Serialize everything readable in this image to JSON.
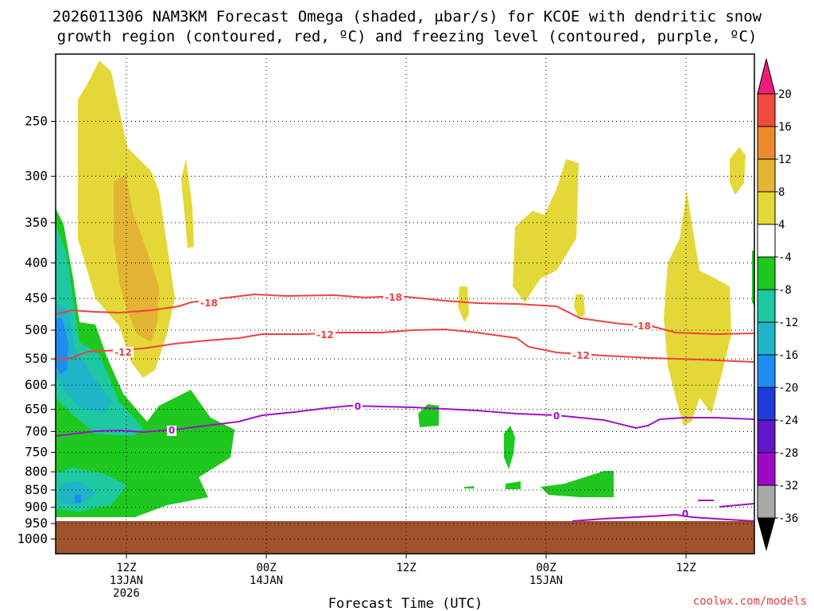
{
  "chart_data": {
    "type": "contour",
    "title": "2026011306 NAM3KM Forecast Omega (shaded, μbar/s) for KCOE with dendritic snow growth region (contoured, red, ºC) and freezing level (contoured, purple, ºC)",
    "title_lines": [
      "2026011306 NAM3KM Forecast Omega (shaded, μbar/s) for KCOE with dendritic snow",
      "growth region (contoured, red, ºC) and freezing level (contoured, purple, ºC)"
    ],
    "xlabel": "Forecast Time (UTC)",
    "y_ticks": [
      "250",
      "300",
      "350",
      "400",
      "450",
      "500",
      "550",
      "600",
      "650",
      "700",
      "750",
      "800",
      "850",
      "900",
      "950",
      "1000"
    ],
    "x_ticks": [
      {
        "hour": 6,
        "line1": "12Z",
        "line2": "13JAN",
        "line3": "2026"
      },
      {
        "hour": 18,
        "line1": "00Z",
        "line2": "14JAN",
        "line3": ""
      },
      {
        "hour": 30,
        "line1": "12Z",
        "line2": "",
        "line3": ""
      },
      {
        "hour": 42,
        "line1": "00Z",
        "line2": "15JAN",
        "line3": ""
      },
      {
        "hour": 54,
        "line1": "12Z",
        "line2": "",
        "line3": ""
      }
    ],
    "x_range_hours": [
      0,
      60
    ],
    "y_range_hpa": [
      200,
      1050
    ],
    "colorbar": {
      "labels": [
        "20",
        "16",
        "12",
        "8",
        "4",
        "-4",
        "-8",
        "-12",
        "-16",
        "-20",
        "-24",
        "-28",
        "-32",
        "-36"
      ],
      "colors": [
        "#ee1c7c",
        "#f04a3c",
        "#ec8a2c",
        "#e4b434",
        "#e4d838",
        "#ffffff",
        "#1ec81e",
        "#1ec8a0",
        "#20b4c8",
        "#1e8cf0",
        "#1e3cdc",
        "#6018c8",
        "#a008c8",
        "#a8a8a8",
        "#000000"
      ]
    },
    "contours": [
      {
        "name": "dgz-minus18",
        "label": "-18",
        "color": "#f04040"
      },
      {
        "name": "dgz-minus12",
        "label": "-12",
        "color": "#f04040"
      },
      {
        "name": "freezing-level",
        "label": "0",
        "color": "#a010c8"
      }
    ],
    "ground_color": "#a0522d",
    "credit": "coolwx.com/models"
  }
}
